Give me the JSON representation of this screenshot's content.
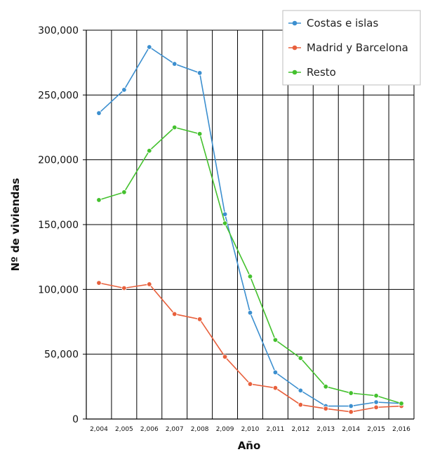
{
  "chart_data": {
    "type": "line",
    "title": "",
    "xlabel": "Año",
    "ylabel": "Nº de viviendas",
    "categories": [
      "2,004",
      "2,005",
      "2,006",
      "2,007",
      "2,008",
      "2,009",
      "2,010",
      "2,011",
      "2,012",
      "2,013",
      "2,014",
      "2,015",
      "2,016"
    ],
    "ylim": [
      0,
      300000
    ],
    "yticks": [
      {
        "value": 0,
        "label": "0"
      },
      {
        "value": 50000,
        "label": "50,000"
      },
      {
        "value": 100000,
        "label": "100,000"
      },
      {
        "value": 150000,
        "label": "150,000"
      },
      {
        "value": 200000,
        "label": "200,000"
      },
      {
        "value": 250000,
        "label": "250,000"
      },
      {
        "value": 300000,
        "label": "300,000"
      }
    ],
    "grid": true,
    "legend_position": "top-right",
    "series": [
      {
        "name": "Costas e islas",
        "color": "#3c8fcf",
        "values": [
          236000,
          254000,
          287000,
          274000,
          267000,
          158000,
          82000,
          36000,
          22000,
          10000,
          10000,
          13000,
          12000
        ]
      },
      {
        "name": "Madrid y Barcelona",
        "color": "#e8603c",
        "values": [
          105000,
          101000,
          104000,
          81000,
          77000,
          48000,
          27000,
          24000,
          11000,
          8000,
          5500,
          9000,
          10000
        ]
      },
      {
        "name": "Resto",
        "color": "#44c12e",
        "values": [
          169000,
          175000,
          207000,
          225000,
          220000,
          151000,
          110000,
          61000,
          47000,
          25000,
          20000,
          18000,
          12000
        ]
      }
    ]
  }
}
